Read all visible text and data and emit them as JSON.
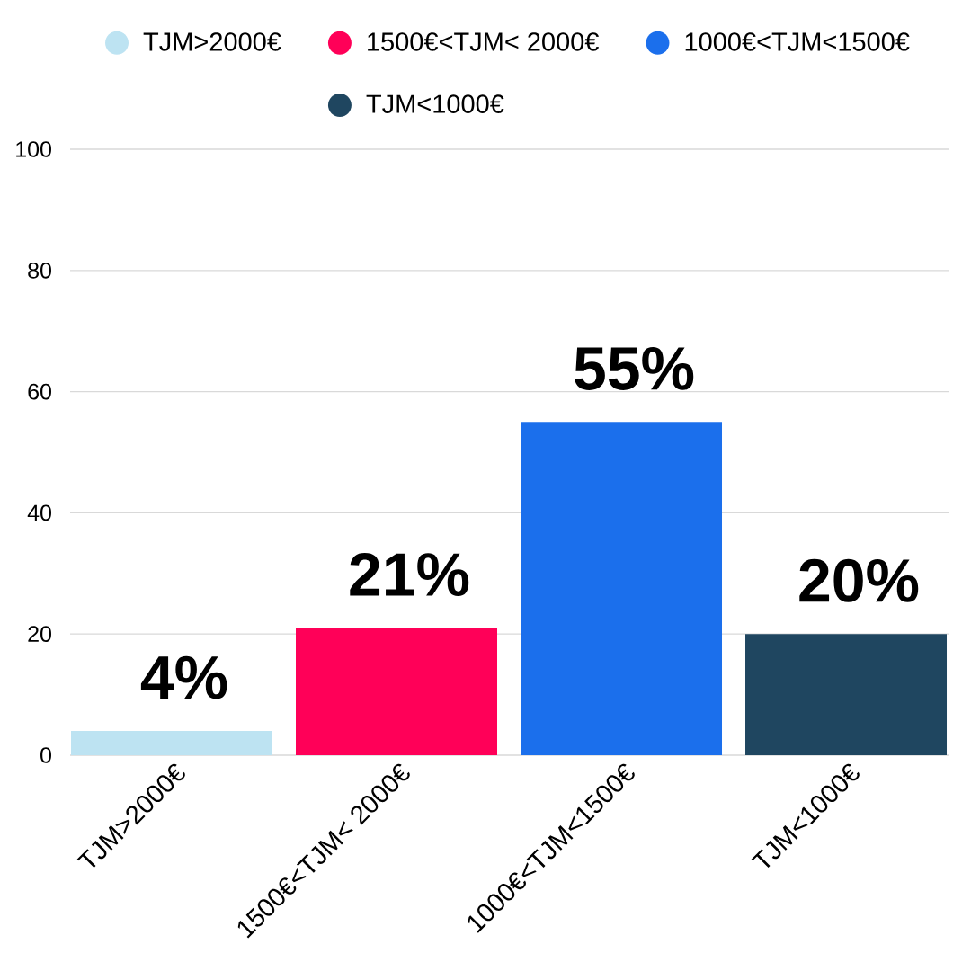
{
  "chart_data": {
    "type": "bar",
    "categories": [
      "TJM>2000€",
      "1500€<TJM< 2000€",
      "1000€<TJM<1500€",
      "TJM<1000€"
    ],
    "series": [
      {
        "name": "TJM>2000€",
        "color": "#bde3f2",
        "values": [
          4,
          null,
          null,
          null
        ],
        "value_labels": [
          "4%",
          null,
          null,
          null
        ]
      },
      {
        "name": "1500€<TJM< 2000€",
        "color": "#ff0058",
        "values": [
          null,
          21,
          null,
          null
        ],
        "value_labels": [
          null,
          "21%",
          null,
          null
        ]
      },
      {
        "name": "1000€<TJM<1500€",
        "color": "#1b6fec",
        "values": [
          null,
          null,
          55,
          null
        ],
        "value_labels": [
          null,
          null,
          "55%",
          null
        ]
      },
      {
        "name": "TJM<1000€",
        "color": "#1f4660",
        "values": [
          null,
          null,
          null,
          20
        ],
        "value_labels": [
          null,
          null,
          null,
          "20%"
        ]
      }
    ],
    "ylim": [
      0,
      100
    ],
    "yticks": [
      0,
      20,
      40,
      60,
      80,
      100
    ],
    "grid": "y",
    "legend": "top"
  }
}
